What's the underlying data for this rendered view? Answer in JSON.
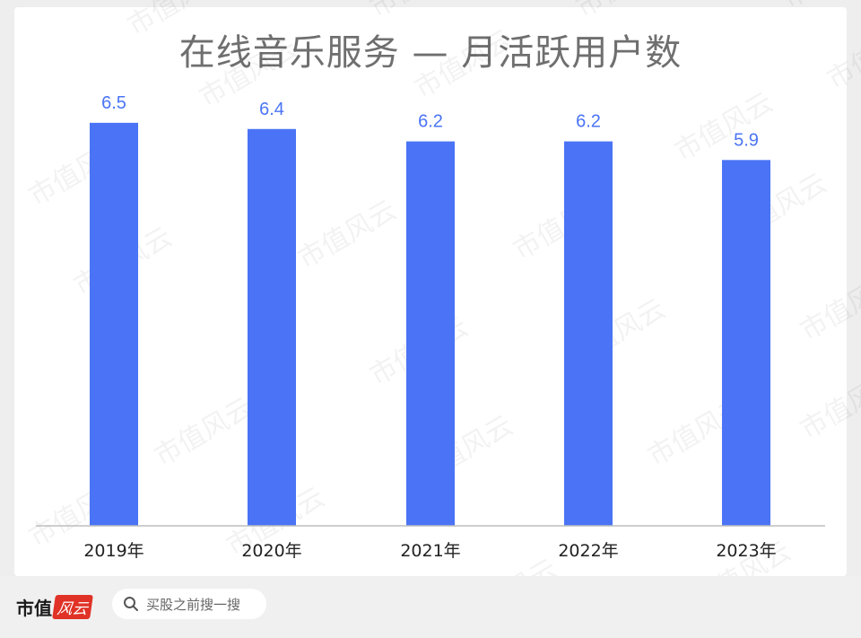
{
  "chart_data": {
    "type": "bar",
    "title": "在线音乐服务 — 月活跃用户数",
    "categories": [
      "2019年",
      "2020年",
      "2021年",
      "2022年",
      "2023年"
    ],
    "values": [
      6.5,
      6.4,
      6.2,
      6.2,
      5.9
    ],
    "data_labels": [
      "6.5",
      "6.4",
      "6.2",
      "6.2",
      "5.9"
    ],
    "xlabel": "",
    "ylabel": "",
    "grid": false,
    "legend": "none",
    "bar_color": "#4a74f5",
    "label_color": "#4a74f5"
  },
  "watermark": "市值风云",
  "footer": {
    "brand_name": "市值",
    "brand_seal": "风云",
    "search_placeholder": "买股之前搜一搜",
    "search_icon": "search-icon"
  }
}
